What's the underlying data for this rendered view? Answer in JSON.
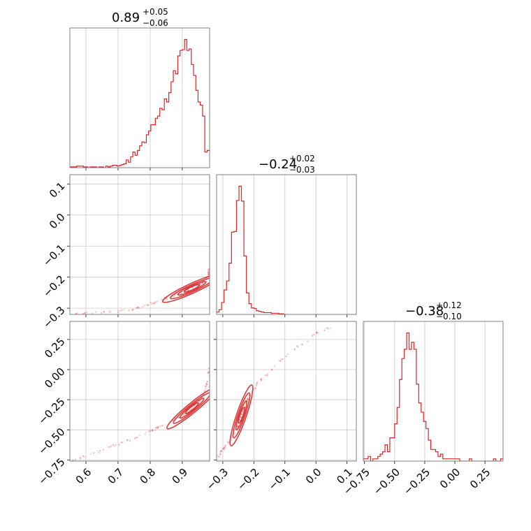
{
  "chart_data": {
    "type": "corner",
    "color": "#d62728",
    "grid": true,
    "parameters": [
      {
        "id": "p0",
        "range": [
          0.55,
          0.985
        ],
        "ticks": [
          0.6,
          0.7,
          0.8,
          0.9
        ],
        "tick_labels": [
          "0.6",
          "0.7",
          "0.8",
          "0.9"
        ],
        "title": {
          "value": "0.89",
          "plus": "+0.05",
          "minus": "−0.06"
        },
        "hist_peak": 0.93,
        "hist_spread": 0.055,
        "hist_skew": "left"
      },
      {
        "id": "p1",
        "range": [
          -0.32,
          0.13
        ],
        "ticks": [
          -0.3,
          -0.2,
          -0.1,
          0.0,
          0.1
        ],
        "tick_labels": [
          "−0.3",
          "−0.2",
          "−0.1",
          "0.0",
          "0.1"
        ],
        "title": {
          "value": "−0.24",
          "plus": "+0.02",
          "minus": "−0.03"
        },
        "hist_peak": -0.24,
        "hist_spread": 0.018,
        "hist_skew": "right"
      },
      {
        "id": "p2",
        "range": [
          -0.76,
          0.4
        ],
        "ticks": [
          -0.75,
          -0.5,
          -0.25,
          0.0,
          0.25
        ],
        "tick_labels": [
          "−0.75",
          "−0.50",
          "−0.25",
          "0.00",
          "0.25"
        ],
        "title": {
          "value": "−0.38",
          "plus": "+0.12",
          "minus": "−0.10"
        },
        "hist_peak": -0.4,
        "hist_spread": 0.09,
        "hist_skew": "right"
      }
    ],
    "histograms": [
      {
        "param": "p0",
        "bins": [
          0.55,
          0.557,
          0.564,
          0.571,
          0.578,
          0.585,
          0.592,
          0.599,
          0.606,
          0.613,
          0.62,
          0.627,
          0.634,
          0.641,
          0.648,
          0.655,
          0.662,
          0.669,
          0.676,
          0.683,
          0.69,
          0.697,
          0.704,
          0.711,
          0.718,
          0.725,
          0.732,
          0.739,
          0.746,
          0.753,
          0.76,
          0.767,
          0.774,
          0.781,
          0.788,
          0.795,
          0.802,
          0.809,
          0.816,
          0.823,
          0.83,
          0.837,
          0.844,
          0.851,
          0.858,
          0.865,
          0.872,
          0.879,
          0.886,
          0.893,
          0.9,
          0.907,
          0.914,
          0.921,
          0.928,
          0.935,
          0.942,
          0.949,
          0.956,
          0.963,
          0.97,
          0.977
        ],
        "counts": [
          1,
          1,
          1,
          2,
          2,
          2,
          1,
          1,
          0,
          1,
          1,
          1,
          0,
          1,
          1,
          0,
          2,
          1,
          2,
          3,
          3,
          2,
          3,
          4,
          5,
          10,
          7,
          14,
          20,
          16,
          22,
          28,
          33,
          32,
          42,
          47,
          55,
          55,
          63,
          66,
          76,
          74,
          88,
          84,
          96,
          110,
          124,
          120,
          143,
          150,
          151,
          164,
          150,
          152,
          132,
          118,
          99,
          84,
          80,
          66,
          20,
          22
        ]
      },
      {
        "param": "p1",
        "bins": [
          -0.32,
          -0.312,
          -0.304,
          -0.296,
          -0.288,
          -0.28,
          -0.272,
          -0.264,
          -0.256,
          -0.248,
          -0.24,
          -0.232,
          -0.224,
          -0.216,
          -0.208,
          -0.2,
          -0.192,
          -0.184,
          -0.176,
          -0.168,
          -0.16,
          -0.152,
          -0.144,
          -0.136,
          -0.128,
          -0.12,
          -0.112,
          -0.104
        ],
        "counts": [
          4,
          8,
          20,
          41,
          56,
          86,
          138,
          139,
          191,
          215,
          190,
          98,
          36,
          18,
          11,
          10,
          6,
          5,
          4,
          3,
          3,
          3,
          2,
          2,
          2,
          1,
          1,
          0
        ]
      },
      {
        "param": "p2",
        "bins": [
          -0.76,
          -0.74,
          -0.72,
          -0.7,
          -0.68,
          -0.66,
          -0.64,
          -0.62,
          -0.6,
          -0.58,
          -0.56,
          -0.54,
          -0.52,
          -0.5,
          -0.48,
          -0.46,
          -0.44,
          -0.42,
          -0.4,
          -0.38,
          -0.36,
          -0.34,
          -0.32,
          -0.3,
          -0.28,
          -0.26,
          -0.24,
          -0.22,
          -0.2,
          -0.18,
          -0.16,
          -0.14,
          -0.12,
          -0.1,
          -0.08,
          -0.06,
          -0.04,
          -0.02,
          0.0,
          0.02,
          0.04,
          0.06,
          0.08,
          0.1,
          0.12,
          0.14,
          0.16,
          0.18,
          0.2,
          0.22,
          0.24,
          0.26,
          0.28,
          0.3,
          0.32,
          0.34,
          0.36,
          0.38
        ],
        "counts": [
          1,
          1,
          2,
          0,
          1,
          1,
          2,
          3,
          4,
          7,
          4,
          10,
          10,
          16,
          23,
          35,
          44,
          48,
          55,
          48,
          51,
          48,
          33,
          25,
          21,
          17,
          14,
          9,
          5,
          5,
          4,
          2,
          3,
          1,
          1,
          1,
          1,
          1,
          1,
          1,
          0,
          0,
          0,
          0,
          1,
          0,
          0,
          0,
          0,
          0,
          0,
          0,
          0,
          0,
          1,
          0,
          0,
          1
        ]
      }
    ],
    "scatter_pairs": [
      {
        "x": "p0",
        "y": "p1",
        "curve": [
          [
            0.55,
            -0.318
          ],
          [
            0.65,
            -0.314
          ],
          [
            0.72,
            -0.308
          ],
          [
            0.77,
            -0.298
          ],
          [
            0.81,
            -0.284
          ],
          [
            0.85,
            -0.268
          ],
          [
            0.89,
            -0.252
          ],
          [
            0.93,
            -0.236
          ],
          [
            0.96,
            -0.219
          ],
          [
            0.975,
            -0.205
          ],
          [
            0.982,
            -0.19
          ],
          [
            0.985,
            -0.17
          ]
        ]
      },
      {
        "x": "p0",
        "y": "p2",
        "curve": [
          [
            0.56,
            -0.75
          ],
          [
            0.63,
            -0.69
          ],
          [
            0.7,
            -0.62
          ],
          [
            0.76,
            -0.56
          ],
          [
            0.81,
            -0.5
          ],
          [
            0.86,
            -0.44
          ],
          [
            0.9,
            -0.38
          ],
          [
            0.93,
            -0.32
          ],
          [
            0.955,
            -0.26
          ],
          [
            0.97,
            -0.18
          ],
          [
            0.98,
            -0.08
          ],
          [
            0.985,
            0.05
          ]
        ]
      },
      {
        "x": "p1",
        "y": "p2",
        "curve": [
          [
            -0.315,
            -0.73
          ],
          [
            -0.3,
            -0.66
          ],
          [
            -0.28,
            -0.6
          ],
          [
            -0.26,
            -0.52
          ],
          [
            -0.25,
            -0.45
          ],
          [
            -0.24,
            -0.38
          ],
          [
            -0.23,
            -0.3
          ],
          [
            -0.215,
            -0.22
          ],
          [
            -0.19,
            -0.12
          ],
          [
            -0.15,
            -0.02
          ],
          [
            -0.08,
            0.15
          ],
          [
            0.0,
            0.3
          ],
          [
            0.05,
            0.35
          ]
        ]
      }
    ]
  }
}
